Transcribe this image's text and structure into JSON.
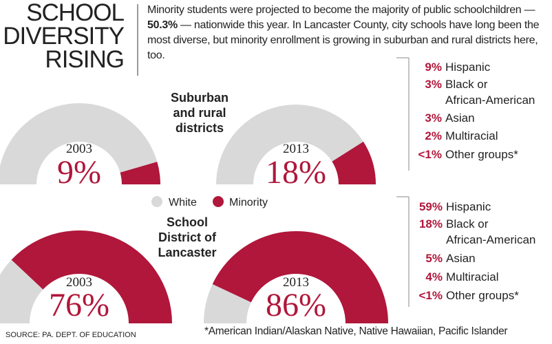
{
  "title": [
    "SCHOOL",
    "DIVERSITY",
    "RISING"
  ],
  "intro": {
    "before": "Minority students were projected to become the majority of public schoolchildren — ",
    "highlight": "50.3%",
    "after": " — nationwide this year. In Lancaster County, city schools have long been the most diverse, but minority enrollment is growing in suburban and rural districts here, too."
  },
  "legend": [
    {
      "name": "White",
      "color": "#d9d9d9"
    },
    {
      "name": "Minority",
      "color": "#b0173b"
    }
  ],
  "chart_data": [
    {
      "type": "semi-donut",
      "year": "2003",
      "values": [
        9
      ],
      "value_labels": [
        "9%"
      ]
    },
    {
      "type": "semi-donut",
      "year": "2013",
      "values": [
        18
      ],
      "value_labels": [
        "18%"
      ]
    },
    {
      "type": "semi-donut",
      "year": "2003",
      "values": [
        76
      ],
      "value_labels": [
        "76%"
      ]
    },
    {
      "type": "semi-donut",
      "year": "2013",
      "values": [
        86
      ],
      "value_labels": [
        "86%"
      ]
    }
  ],
  "groups": [
    {
      "label": [
        "Suburban",
        "and rural",
        "districts"
      ],
      "breakdown": [
        {
          "value": "9%",
          "label": [
            "Hispanic"
          ]
        },
        {
          "value": "3%",
          "label": [
            "Black or",
            "African-American"
          ]
        },
        {
          "value": "3%",
          "label": [
            "Asian"
          ]
        },
        {
          "value": "2%",
          "label": [
            "Multiracial"
          ]
        },
        {
          "value": "<1%",
          "label": [
            "Other groups*"
          ]
        }
      ]
    },
    {
      "label": [
        "School",
        "District of",
        "Lancaster"
      ],
      "breakdown": [
        {
          "value": "59%",
          "label": [
            "Hispanic"
          ]
        },
        {
          "value": "18%",
          "label": [
            "Black or",
            "African-American"
          ]
        },
        {
          "value": "5%",
          "label": [
            "Asian"
          ]
        },
        {
          "value": "4%",
          "label": [
            "Multiracial"
          ]
        },
        {
          "value": "<1%",
          "label": [
            "Other groups*"
          ]
        }
      ]
    }
  ],
  "footnote": "*American Indian/Alaskan Native, Native Hawaiian, Pacific Islander",
  "source": "SOURCE: PA. DEPT. OF EDUCATION"
}
